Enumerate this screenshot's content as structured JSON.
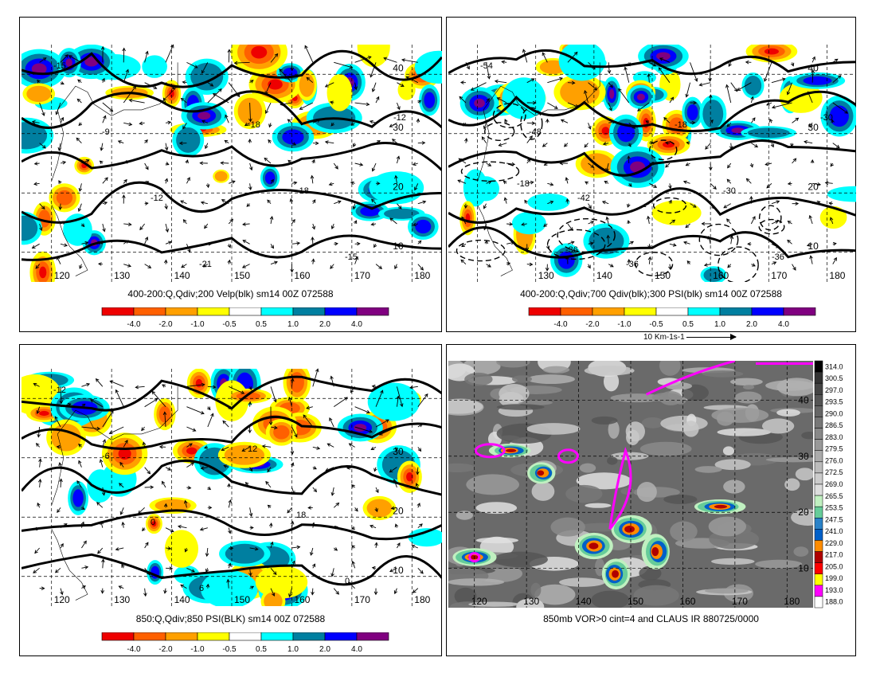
{
  "panels": [
    {
      "id": "tl",
      "caption": "400-200:Q,Qdiv;200 Velp(blk) sm14 00Z 072588",
      "lon_labels": [
        "120",
        "130",
        "140",
        "150",
        "160",
        "170",
        "180"
      ],
      "lat_labels": [
        "40",
        "30",
        "20",
        "10"
      ],
      "contour_labels": [
        "-15",
        "-9",
        "-12",
        "-21",
        "-18",
        "-18",
        "-15",
        "-12"
      ]
    },
    {
      "id": "tr",
      "caption": "400-200:Q,Qdiv;700 Qdiv(blk);300 PSI(blk) sm14 00Z 072588",
      "lon_labels": [
        "130",
        "140",
        "150",
        "160",
        "170",
        "180"
      ],
      "lat_labels": [
        "40",
        "30",
        "20",
        "10"
      ],
      "contour_labels": [
        "-54",
        "-48",
        "-42",
        "-36",
        "-18",
        "-30",
        "-36",
        "-30",
        "-18",
        "-36"
      ]
    },
    {
      "id": "bl",
      "caption": "850:Q,Qdiv;850 PSI(BLK) sm14 00Z 072588",
      "lon_labels": [
        "120",
        "130",
        "140",
        "150",
        "160",
        "170",
        "180"
      ],
      "lat_labels": [
        "30",
        "20",
        "10"
      ],
      "contour_labels": [
        "-12",
        "-6",
        "0",
        "6",
        "12",
        "18",
        "0"
      ]
    },
    {
      "id": "br",
      "caption": "850mb VOR>0 cint=4 and CLAUS IR 880725/0000",
      "lon_labels": [
        "120",
        "130",
        "140",
        "150",
        "160",
        "170",
        "180"
      ],
      "lat_labels": [
        "40",
        "30",
        "20",
        "10"
      ],
      "contour_labels": []
    }
  ],
  "qdiv_colorbar": {
    "labels": [
      "-4.0",
      "-2.0",
      "-1.0",
      "-0.5",
      "0.5",
      "1.0",
      "2.0",
      "4.0"
    ],
    "colors": [
      "#ee0000",
      "#ff6000",
      "#ffa000",
      "#ffff00",
      "#ffffff",
      "#00ffff",
      "#007fa0",
      "#0000ff",
      "#800080"
    ]
  },
  "reference_vector": {
    "label": "10 Km-1s-1"
  },
  "ir_colorbar": {
    "labels": [
      "314.0",
      "300.5",
      "297.0",
      "293.5",
      "290.0",
      "286.5",
      "283.0",
      "279.5",
      "276.0",
      "272.5",
      "269.0",
      "265.5",
      "253.5",
      "247.5",
      "241.0",
      "229.0",
      "217.0",
      "205.0",
      "199.0",
      "193.0",
      "188.0"
    ],
    "colors": [
      "#000000",
      "#333333",
      "#444444",
      "#555555",
      "#666666",
      "#777777",
      "#888888",
      "#999999",
      "#aaaaaa",
      "#bbbbbb",
      "#cccccc",
      "#dddddd",
      "#c0f0c0",
      "#66cc99",
      "#2a82c8",
      "#0060c8",
      "#ff8c00",
      "#b00000",
      "#ff0000",
      "#ffff00",
      "#ff00ff",
      "#ffffff"
    ]
  }
}
